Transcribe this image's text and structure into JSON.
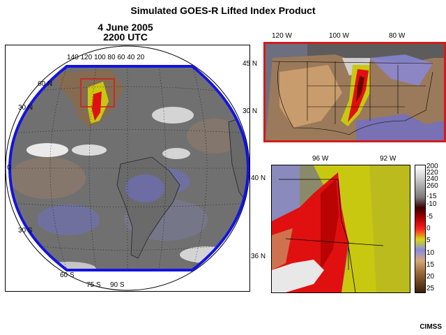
{
  "title": "Simulated GOES-R Lifted Index Product",
  "date": "4 June 2005",
  "time": "2200 UTC",
  "credit": "CIMSS",
  "colors": {
    "stable_brown": "#8b5a2b",
    "slightly_stable_tan": "#c89c6c",
    "neutral_blue": "#6f6fcb",
    "unstable_yellow": "#c8c810",
    "very_unstable_red": "#e01010",
    "extreme_darkred": "#700000",
    "cloud_white": "#ffffff",
    "scene_gray": "#777777",
    "globe_outline": "#1414e0",
    "subregion_box": "#d01c1c"
  },
  "globe_panel": {
    "lon_labels": [
      "140",
      "120",
      "100",
      "80",
      "60",
      "40",
      "20"
    ],
    "lat_labels": [
      "60 N",
      "30 N",
      "0",
      "30 S",
      "60 S"
    ],
    "lower_labels": [
      "90 S",
      "75 S"
    ]
  },
  "us_panel": {
    "lon_labels": [
      "120 W",
      "100 W",
      "80 W"
    ],
    "lat_labels": [
      "45 N",
      "30 N"
    ]
  },
  "zoom_panel": {
    "lon_labels": [
      "96 W",
      "92 W"
    ],
    "lat_labels": [
      "40 N",
      "36 N"
    ]
  },
  "colorbar": {
    "labels": [
      "200",
      "220",
      "240",
      "260",
      "-15",
      "-10",
      "-5",
      "0",
      "5",
      "10",
      "15",
      "20",
      "25"
    ],
    "stops": [
      "#ffffff",
      "#d8d8d8",
      "#a8a8a8",
      "#7c7c7c",
      "#3a0000",
      "#b00000",
      "#ff2020",
      "#d8d810",
      "#8a8ae0",
      "#d6a878",
      "#a0703e",
      "#6e4520",
      "#3a2008"
    ]
  }
}
